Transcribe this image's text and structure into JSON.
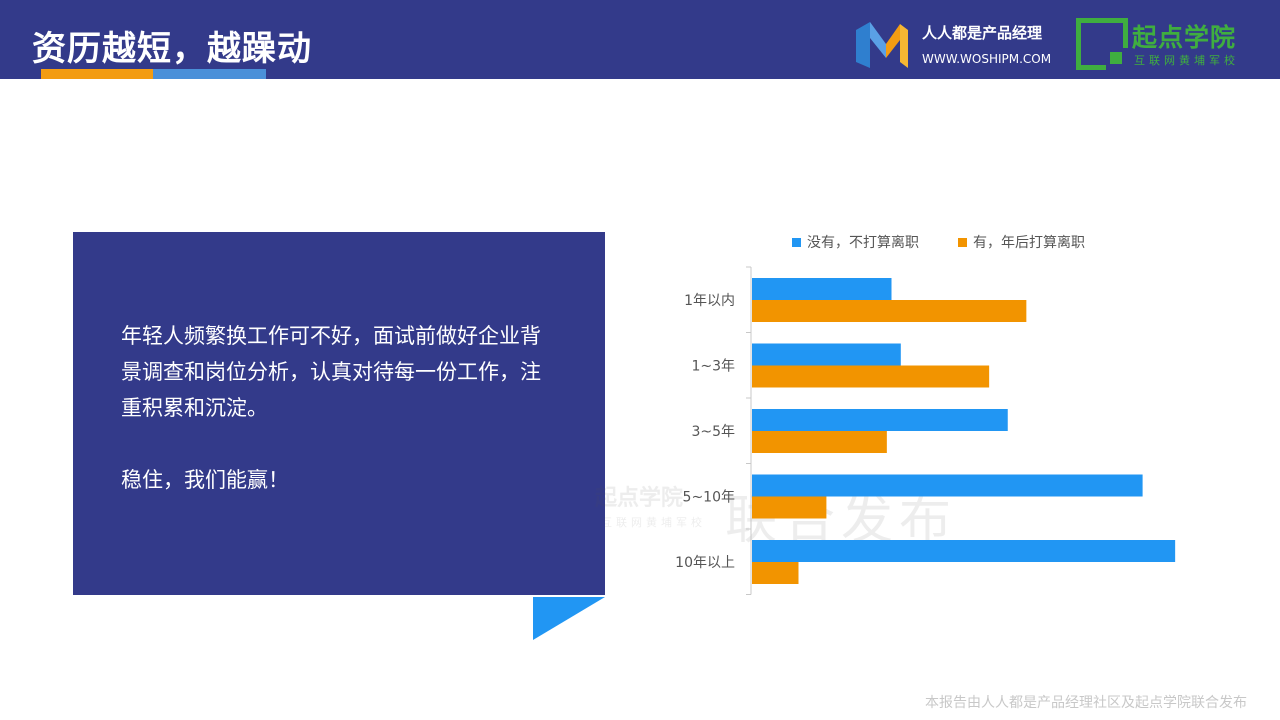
{
  "header": {
    "title": "资历越短，越躁动",
    "logo1_name": "人人都是产品经理",
    "logo1_url": "WWW.WOSHIPM.COM",
    "logo2_name": "起点学院",
    "logo2_sub": "互联网黄埔军校"
  },
  "card": {
    "paragraph": "年轻人频繁换工作可不好，面试前做好企业背景调查和岗位分析，认真对待每一份工作，注重积累和沉淀。",
    "slogan": "稳住，我们能赢！"
  },
  "watermark": {
    "small": "起点学院",
    "small_sub": "互联网黄埔军校",
    "big": "联合发布"
  },
  "footer": "本报告由人人都是产品经理社区及起点学院联合发布",
  "colors": {
    "header_bg": "#333a8a",
    "series_blue": "#2196f3",
    "series_orange": "#f29400"
  },
  "chart_data": {
    "type": "bar",
    "orientation": "horizontal",
    "categories": [
      "1年以内",
      "1~3年",
      "3~5年",
      "5~10年",
      "10年以上"
    ],
    "series": [
      {
        "name": "没有，不打算离职",
        "values": [
          30,
          32,
          55,
          84,
          91
        ]
      },
      {
        "name": "有，年后打算离职",
        "values": [
          59,
          51,
          29,
          16,
          10
        ]
      }
    ],
    "xlim": [
      0,
      100
    ],
    "legend": "top",
    "grid": false
  }
}
